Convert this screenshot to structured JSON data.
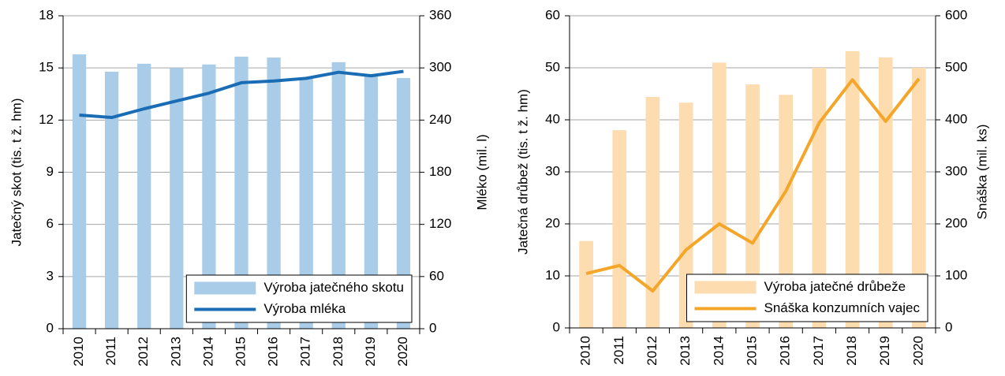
{
  "chart_data": [
    {
      "type": "combo",
      "categories": [
        "2010",
        "2011",
        "2012",
        "2013",
        "2014",
        "2015",
        "2016",
        "2017",
        "2018",
        "2019",
        "2020"
      ],
      "ylabel": "Jatečný skot (tis. t ž. hm)",
      "y2label": "Mléko (mil. l)",
      "ylim": [
        0,
        18
      ],
      "yticks": [
        0,
        3,
        6,
        9,
        12,
        15,
        18
      ],
      "y2lim": [
        0,
        360
      ],
      "y2ticks": [
        0,
        60,
        120,
        180,
        240,
        300,
        360
      ],
      "grid": true,
      "legend": "lower right",
      "series": [
        {
          "name": "Výroba jatečného skotu",
          "type": "bar",
          "color": "#a9cce9",
          "values": [
            15.78,
            14.78,
            15.24,
            15.0,
            15.2,
            15.65,
            15.6,
            14.4,
            15.33,
            14.6,
            14.42
          ]
        },
        {
          "name": "Výroba mléka",
          "type": "line",
          "axis": "y2",
          "color": "#1a6db5",
          "values": [
            245.7,
            243,
            253,
            262,
            271,
            283,
            285,
            288,
            295,
            291,
            296
          ]
        }
      ]
    },
    {
      "type": "combo",
      "categories": [
        "2010",
        "2011",
        "2012",
        "2013",
        "2014",
        "2015",
        "2016",
        "2017",
        "2018",
        "2019",
        "2020"
      ],
      "ylabel": "Jatečná drůbež (tis. t ž. hm)",
      "y2label": "Snáška (mil. ks)",
      "ylim": [
        0,
        60
      ],
      "yticks": [
        0,
        10,
        20,
        30,
        40,
        50,
        60
      ],
      "y2lim": [
        0,
        600
      ],
      "y2ticks": [
        0,
        100,
        200,
        300,
        400,
        500,
        600
      ],
      "grid": true,
      "legend": "lower right",
      "series": [
        {
          "name": "Výroba jatečné drůbeže",
          "type": "bar",
          "color": "#fddcb0",
          "values": [
            16.7,
            38,
            44.4,
            43.3,
            51,
            46.8,
            44.8,
            50,
            53.2,
            52,
            50
          ]
        },
        {
          "name": "Snáška konzumních vajec",
          "type": "line",
          "axis": "y2",
          "color": "#f4a62a",
          "values": [
            104.5,
            120,
            71,
            150,
            200,
            163,
            263,
            394,
            477,
            397,
            479
          ]
        }
      ]
    }
  ]
}
